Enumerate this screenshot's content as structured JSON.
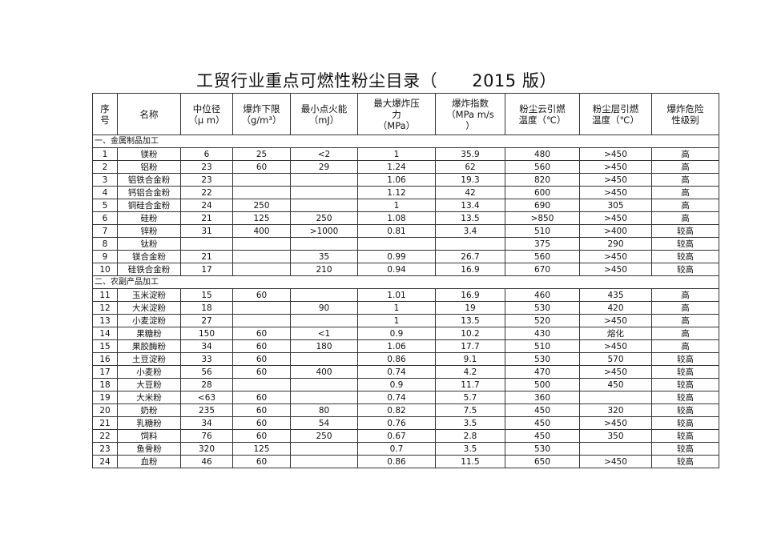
{
  "title": "工贸行业重点可燃性粉尘目录（      2015 版）",
  "table": {
    "headers": [
      "序\n号",
      "名称",
      "中位径\n（μ m）",
      "爆炸下限\n（g/m³）",
      "最小点火能\n（mJ）",
      "最大爆炸压\n力\n（MPa）",
      "爆炸指数\n（MPa m/s\n）",
      "粉尘云引燃\n温度（℃）",
      "粉尘层引燃\n温度（℃）",
      "爆炸危险\n性级别"
    ],
    "sections": [
      {
        "label": "一、金属制品加工",
        "rows": [
          [
            "1",
            "镁粉",
            "6",
            "25",
            "<2",
            "1",
            "35.9",
            "480",
            ">450",
            "高"
          ],
          [
            "2",
            "铝粉",
            "23",
            "60",
            "29",
            "1.24",
            "62",
            "560",
            ">450",
            "高"
          ],
          [
            "3",
            "铝铁合金粉",
            "23",
            "",
            "",
            "1.06",
            "19.3",
            "820",
            ">450",
            "高"
          ],
          [
            "4",
            "钙铝合金粉",
            "22",
            "",
            "",
            "1.12",
            "42",
            "600",
            ">450",
            "高"
          ],
          [
            "5",
            "铜硅合金粉",
            "24",
            "250",
            "",
            "1",
            "13.4",
            "690",
            "305",
            "高"
          ],
          [
            "6",
            "硅粉",
            "21",
            "125",
            "250",
            "1.08",
            "13.5",
            ">850",
            ">450",
            "高"
          ],
          [
            "7",
            "锌粉",
            "31",
            "400",
            ">1000",
            "0.81",
            "3.4",
            "510",
            ">400",
            "较高"
          ],
          [
            "8",
            "钛粉",
            "",
            "",
            "",
            "",
            "",
            "375",
            "290",
            "较高"
          ],
          [
            "9",
            "镁合金粉",
            "21",
            "",
            "35",
            "0.99",
            "26.7",
            "560",
            ">450",
            "较高"
          ],
          [
            "10",
            "硅铁合金粉",
            "17",
            "",
            "210",
            "0.94",
            "16.9",
            "670",
            ">450",
            "较高"
          ]
        ]
      },
      {
        "label": "二、农副产品加工",
        "rows": [
          [
            "11",
            "玉米淀粉",
            "15",
            "60",
            "",
            "1.01",
            "16.9",
            "460",
            "435",
            "高"
          ],
          [
            "12",
            "大米淀粉",
            "18",
            "",
            "90",
            "1",
            "19",
            "530",
            "420",
            "高"
          ],
          [
            "13",
            "小麦淀粉",
            "27",
            "",
            "",
            "1",
            "13.5",
            "520",
            ">450",
            "高"
          ],
          [
            "14",
            "果糖粉",
            "150",
            "60",
            "<1",
            "0.9",
            "10.2",
            "430",
            "熔化",
            "高"
          ],
          [
            "15",
            "果胶酶粉",
            "34",
            "60",
            "180",
            "1.06",
            "17.7",
            "510",
            ">450",
            "高"
          ],
          [
            "16",
            "土豆淀粉",
            "33",
            "60",
            "",
            "0.86",
            "9.1",
            "530",
            "570",
            "较高"
          ],
          [
            "17",
            "小麦粉",
            "56",
            "60",
            "400",
            "0.74",
            "4.2",
            "470",
            ">450",
            "较高"
          ],
          [
            "18",
            "大豆粉",
            "28",
            "",
            "",
            "0.9",
            "11.7",
            "500",
            "450",
            "较高"
          ],
          [
            "19",
            "大米粉",
            "<63",
            "60",
            "",
            "0.74",
            "5.7",
            "360",
            "",
            "较高"
          ],
          [
            "20",
            "奶粉",
            "235",
            "60",
            "80",
            "0.82",
            "7.5",
            "450",
            "320",
            "较高"
          ],
          [
            "21",
            "乳糖粉",
            "34",
            "60",
            "54",
            "0.76",
            "3.5",
            "450",
            ">450",
            "较高"
          ],
          [
            "22",
            "饲料",
            "76",
            "60",
            "250",
            "0.67",
            "2.8",
            "450",
            "350",
            "较高"
          ],
          [
            "23",
            "鱼骨粉",
            "320",
            "125",
            "",
            "0.7",
            "3.5",
            "530",
            "",
            "较高"
          ],
          [
            "24",
            "血粉",
            "46",
            "60",
            "",
            "0.86",
            "11.5",
            "650",
            ">450",
            "较高"
          ]
        ]
      }
    ]
  }
}
